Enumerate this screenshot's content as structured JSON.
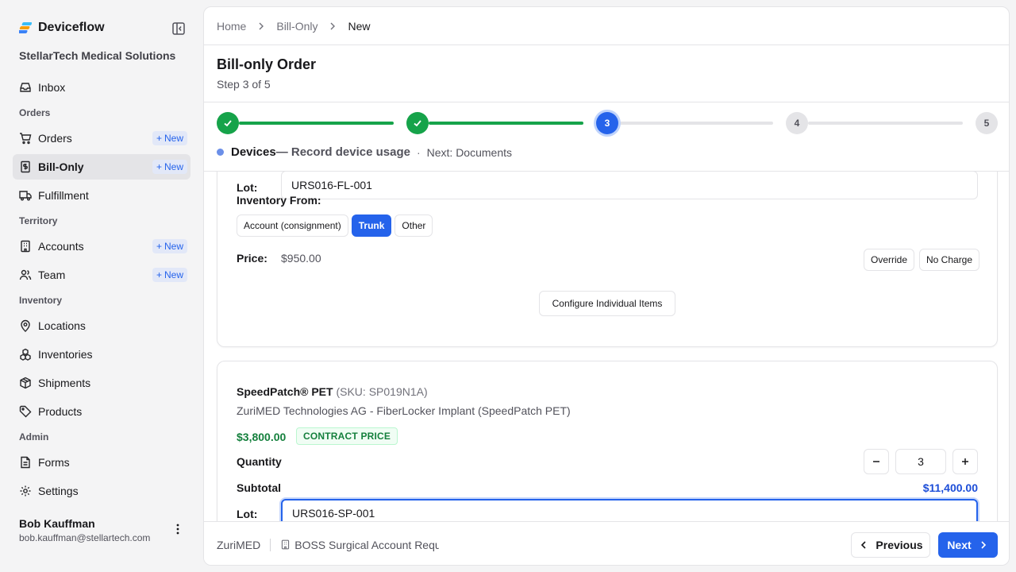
{
  "app": {
    "name": "Deviceflow",
    "org": "StellarTech Medical Solutions",
    "accent": "#2563eb"
  },
  "sidebar": {
    "new_label": "New",
    "inbox": "Inbox",
    "orders_group": "Orders",
    "orders": "Orders",
    "bill_only": "Bill-Only",
    "fulfillment": "Fulfillment",
    "territory_group": "Territory",
    "accounts": "Accounts",
    "team": "Team",
    "inventory_group": "Inventory",
    "locations": "Locations",
    "inventories": "Inventories",
    "shipments": "Shipments",
    "products": "Products",
    "admin_group": "Admin",
    "forms": "Forms",
    "settings": "Settings"
  },
  "user": {
    "name": "Bob Kauffman",
    "email": "bob.kauffman@stellartech.com"
  },
  "breadcrumb": [
    "Home",
    "Bill-Only",
    "New"
  ],
  "page": {
    "title": "Bill-only Order",
    "subtitle": "Step 3 of 5"
  },
  "stepper": {
    "current": 3,
    "steps": [
      "1",
      "2",
      "3",
      "4",
      "5"
    ],
    "current_name": "Devices",
    "current_desc": "— Record device usage",
    "separator": "·",
    "next": "Next: Documents"
  },
  "device1": {
    "lot_label": "Lot:",
    "lot": "URS016-FL-001",
    "inventory_label": "Inventory From:",
    "inventory_options": [
      "Account (consignment)",
      "Trunk",
      "Other"
    ],
    "inventory_selected": "Trunk",
    "price_label": "Price:",
    "price": "$950.00",
    "override": "Override",
    "no_charge": "No Charge",
    "configure": "Configure Individual Items"
  },
  "device2": {
    "name": "SpeedPatch® PET",
    "sku": "(SKU: SP019N1A)",
    "manufacturer": "ZuriMED Technologies AG - FiberLocker Implant (SpeedPatch PET)",
    "price": "$3,800.00",
    "badge": "CONTRACT PRICE",
    "quantity_label": "Quantity",
    "quantity": "3",
    "subtotal_label": "Subtotal",
    "subtotal": "$11,400.00",
    "lot_label": "Lot:",
    "lot": "URS016-SP-001"
  },
  "footer": {
    "vendor": "ZuriMED",
    "account": "BOSS Surgical Account Request",
    "previous": "Previous",
    "next": "Next"
  }
}
